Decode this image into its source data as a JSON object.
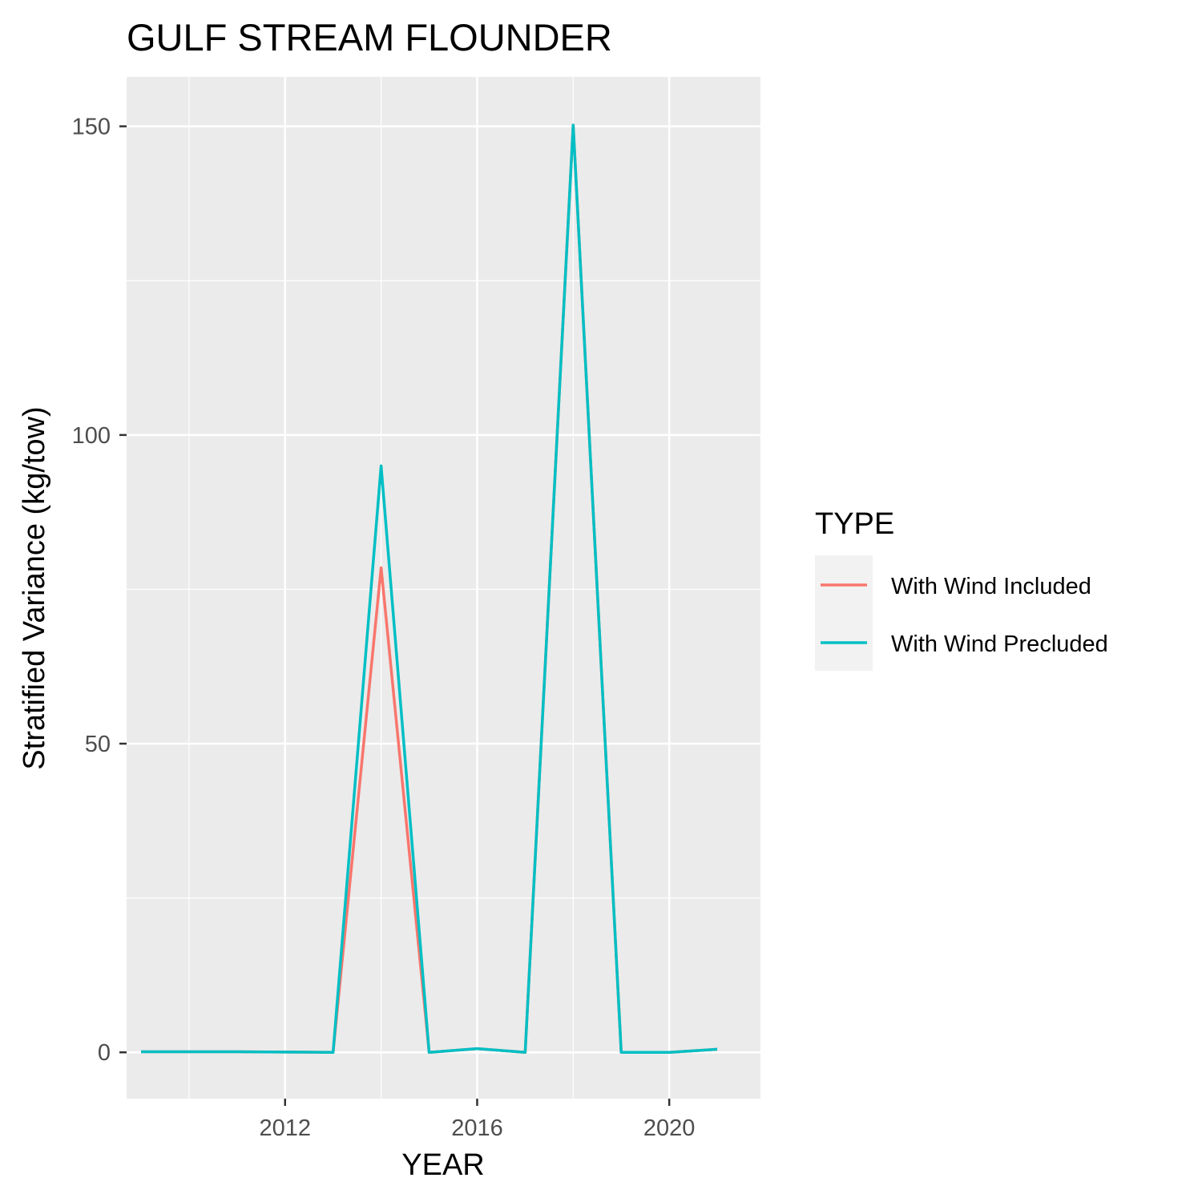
{
  "chart_data": {
    "type": "line",
    "title": "GULF STREAM FLOUNDER",
    "xlabel": "YEAR",
    "ylabel": "Stratified Variance (kg/tow)",
    "xlim": [
      2008.7,
      2021.9
    ],
    "ylim": [
      -7.5,
      158
    ],
    "x_ticks": [
      2012,
      2016,
      2020
    ],
    "x_minor_ticks": [
      2010,
      2014,
      2018
    ],
    "y_ticks": [
      0,
      50,
      100,
      150
    ],
    "y_minor_ticks": [
      25,
      75,
      125
    ],
    "x": [
      2009,
      2010,
      2011,
      2012,
      2013,
      2014,
      2015,
      2016,
      2017,
      2018,
      2019,
      2020,
      2021
    ],
    "series": [
      {
        "name": "With Wind Included",
        "color": "#F8766D",
        "values": [
          0.1,
          0.1,
          0.1,
          0.05,
          0.0,
          78.5,
          0.0,
          0.6,
          0.0,
          150.2,
          0.0,
          0.0,
          0.5
        ]
      },
      {
        "name": "With Wind Precluded",
        "color": "#00BFC4",
        "values": [
          0.1,
          0.1,
          0.1,
          0.05,
          0.0,
          95.0,
          0.0,
          0.6,
          0.0,
          150.2,
          0.0,
          0.0,
          0.5
        ]
      }
    ],
    "legend": {
      "title": "TYPE",
      "placement": "right"
    },
    "grid": true,
    "panel_color": "#EBEBEB",
    "legend_key_color": "#F2F2F2"
  }
}
